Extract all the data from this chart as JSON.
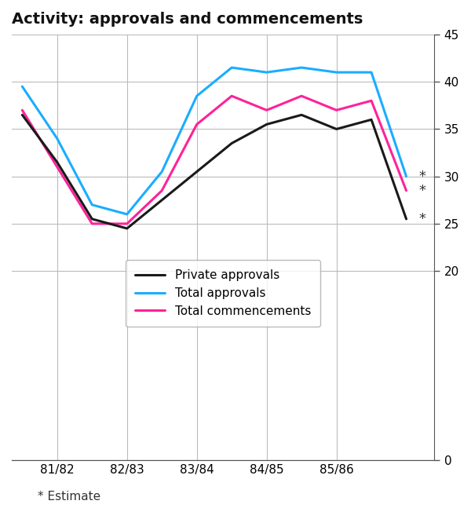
{
  "title": "Activity: approvals and commencements",
  "footnote": "* Estimate",
  "ylim": [
    0,
    45
  ],
  "yticks": [
    0,
    20,
    25,
    30,
    35,
    40,
    45
  ],
  "yticklabels": [
    "0",
    "20",
    "25",
    "30",
    "35",
    "40",
    "45"
  ],
  "grid_color": "#bbbbbb",
  "background_color": "#ffffff",
  "private_approvals": {
    "label": "Private approvals",
    "color": "#1a1a1a",
    "linewidth": 2.2,
    "x": [
      0,
      1,
      2,
      3,
      4,
      5,
      6,
      7,
      8,
      9,
      10,
      11
    ],
    "y": [
      36.5,
      31.5,
      25.5,
      24.5,
      27.5,
      30.5,
      33.5,
      35.5,
      36.5,
      35.0,
      36.0,
      25.5
    ]
  },
  "total_approvals": {
    "label": "Total approvals",
    "color": "#1aadff",
    "linewidth": 2.2,
    "x": [
      0,
      1,
      2,
      3,
      4,
      5,
      6,
      7,
      8,
      9,
      10,
      11
    ],
    "y": [
      39.5,
      34.0,
      27.0,
      26.0,
      30.5,
      38.5,
      41.5,
      41.0,
      41.5,
      41.0,
      41.0,
      30.0
    ]
  },
  "total_commencements": {
    "label": "Total commencements",
    "color": "#ff2299",
    "linewidth": 2.2,
    "x": [
      0,
      1,
      2,
      3,
      4,
      5,
      6,
      7,
      8,
      9,
      10,
      11
    ],
    "y": [
      37.0,
      31.0,
      25.0,
      25.0,
      28.5,
      35.5,
      38.5,
      37.0,
      38.5,
      37.0,
      38.0,
      28.5
    ]
  },
  "xtick_positions": [
    1,
    3,
    5,
    7,
    9
  ],
  "xtick_labels": [
    "81/82",
    "82/83",
    "83/84",
    "84/85",
    "85/86"
  ],
  "xlim": [
    -0.3,
    11.8
  ],
  "star_ta_y": 30.0,
  "star_pa_y": 25.5,
  "star_tc_y": 28.5,
  "star_x": 11.35
}
